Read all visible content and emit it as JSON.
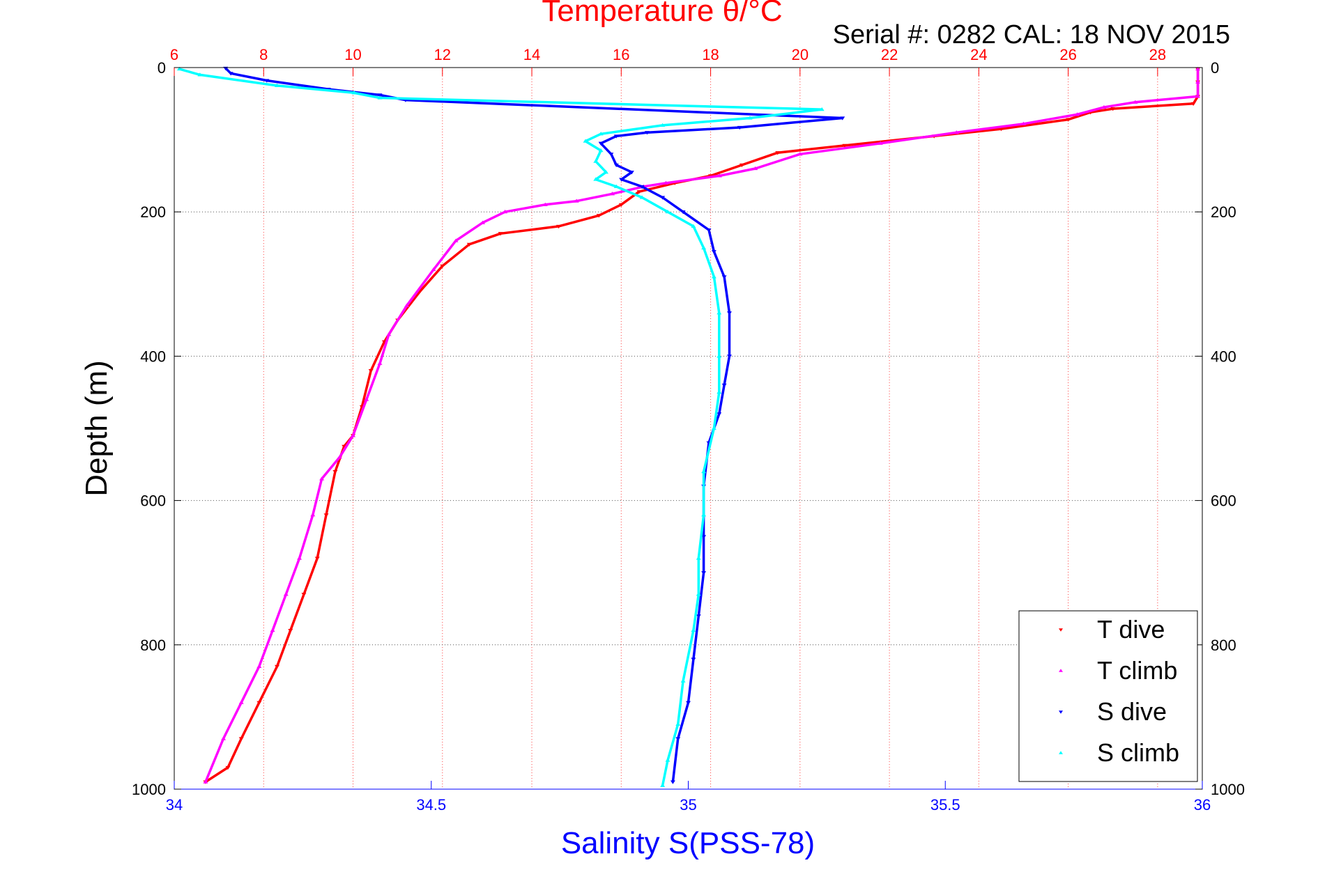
{
  "chart_data": {
    "type": "scatter",
    "title": "Temperature θ/°C",
    "subtitle": "Serial #: 0282  CAL: 18 NOV 2015",
    "xlabel": "Salinity S(PSS-78)",
    "ylabel": "Depth (m)",
    "temperature_axis": {
      "lim": [
        6,
        29
      ],
      "ticks": [
        "6",
        "8",
        "10",
        "12",
        "14",
        "16",
        "18",
        "20",
        "22",
        "24",
        "26",
        "28"
      ]
    },
    "salinity_axis": {
      "lim": [
        34,
        36
      ],
      "ticks": [
        "34",
        "34.5",
        "35",
        "35.5",
        "36"
      ]
    },
    "depth_axis": {
      "lim": [
        0,
        1000
      ],
      "reversed": true,
      "ticks": [
        "0",
        "200",
        "400",
        "600",
        "800",
        "1000"
      ]
    },
    "grid": true,
    "legend": {
      "placement": "bottom-right"
    },
    "series": [
      {
        "name": "T dive",
        "axis": "temperature",
        "color": "#ff0000",
        "marker": "triangle-down",
        "points": [
          [
            28.9,
            2
          ],
          [
            28.9,
            20
          ],
          [
            28.9,
            40
          ],
          [
            28.8,
            50
          ],
          [
            27.0,
            57
          ],
          [
            26.5,
            62
          ],
          [
            26.0,
            72
          ],
          [
            24.5,
            85
          ],
          [
            23.0,
            95
          ],
          [
            21.0,
            108
          ],
          [
            19.5,
            118
          ],
          [
            18.7,
            135
          ],
          [
            18.0,
            150
          ],
          [
            17.2,
            160
          ],
          [
            16.4,
            172
          ],
          [
            16.0,
            190
          ],
          [
            15.5,
            205
          ],
          [
            14.6,
            220
          ],
          [
            13.3,
            230
          ],
          [
            12.6,
            245
          ],
          [
            12.0,
            275
          ],
          [
            11.5,
            310
          ],
          [
            11.0,
            350
          ],
          [
            10.7,
            380
          ],
          [
            10.4,
            420
          ],
          [
            10.2,
            470
          ],
          [
            10.0,
            510
          ],
          [
            9.8,
            525
          ],
          [
            9.6,
            560
          ],
          [
            9.4,
            620
          ],
          [
            9.2,
            680
          ],
          [
            8.9,
            730
          ],
          [
            8.6,
            780
          ],
          [
            8.3,
            830
          ],
          [
            7.9,
            880
          ],
          [
            7.5,
            930
          ],
          [
            7.2,
            970
          ],
          [
            6.7,
            990
          ]
        ]
      },
      {
        "name": "T climb",
        "axis": "temperature",
        "color": "#ff00ff",
        "marker": "triangle-up",
        "points": [
          [
            28.9,
            2
          ],
          [
            28.9,
            20
          ],
          [
            28.9,
            40
          ],
          [
            27.5,
            48
          ],
          [
            26.8,
            55
          ],
          [
            26.2,
            65
          ],
          [
            25.0,
            78
          ],
          [
            23.5,
            90
          ],
          [
            21.8,
            105
          ],
          [
            20.0,
            120
          ],
          [
            19.0,
            140
          ],
          [
            18.2,
            150
          ],
          [
            17.0,
            160
          ],
          [
            16.5,
            165
          ],
          [
            15.8,
            175
          ],
          [
            15.0,
            185
          ],
          [
            14.3,
            190
          ],
          [
            13.4,
            200
          ],
          [
            12.9,
            215
          ],
          [
            12.3,
            240
          ],
          [
            11.8,
            280
          ],
          [
            11.2,
            330
          ],
          [
            10.8,
            370
          ],
          [
            10.6,
            410
          ],
          [
            10.3,
            460
          ],
          [
            10.0,
            510
          ],
          [
            9.7,
            540
          ],
          [
            9.3,
            570
          ],
          [
            9.1,
            620
          ],
          [
            8.8,
            680
          ],
          [
            8.5,
            730
          ],
          [
            8.2,
            780
          ],
          [
            7.9,
            830
          ],
          [
            7.5,
            880
          ],
          [
            7.1,
            930
          ],
          [
            6.7,
            990
          ]
        ]
      },
      {
        "name": "S dive",
        "axis": "salinity",
        "color": "#0000ff",
        "marker": "triangle-down",
        "points": [
          [
            34.1,
            1
          ],
          [
            34.11,
            8
          ],
          [
            34.18,
            18
          ],
          [
            34.3,
            30
          ],
          [
            34.4,
            38
          ],
          [
            34.45,
            45
          ],
          [
            35.3,
            70
          ],
          [
            35.1,
            83
          ],
          [
            34.92,
            90
          ],
          [
            34.86,
            95
          ],
          [
            34.83,
            105
          ],
          [
            34.85,
            120
          ],
          [
            34.86,
            135
          ],
          [
            34.89,
            145
          ],
          [
            34.87,
            155
          ],
          [
            34.91,
            165
          ],
          [
            34.95,
            180
          ],
          [
            34.99,
            200
          ],
          [
            35.04,
            225
          ],
          [
            35.05,
            255
          ],
          [
            35.07,
            290
          ],
          [
            35.08,
            340
          ],
          [
            35.08,
            400
          ],
          [
            35.07,
            440
          ],
          [
            35.06,
            480
          ],
          [
            35.04,
            520
          ],
          [
            35.03,
            580
          ],
          [
            35.03,
            650
          ],
          [
            35.03,
            700
          ],
          [
            35.02,
            760
          ],
          [
            35.01,
            820
          ],
          [
            35.0,
            880
          ],
          [
            34.98,
            930
          ],
          [
            34.97,
            990
          ]
        ]
      },
      {
        "name": "S climb",
        "axis": "salinity",
        "color": "#00ffff",
        "marker": "triangle-up",
        "points": [
          [
            34.01,
            2
          ],
          [
            34.05,
            10
          ],
          [
            34.2,
            25
          ],
          [
            34.35,
            35
          ],
          [
            34.4,
            42
          ],
          [
            35.26,
            58
          ],
          [
            35.12,
            70
          ],
          [
            34.95,
            80
          ],
          [
            34.83,
            92
          ],
          [
            34.8,
            102
          ],
          [
            34.83,
            115
          ],
          [
            34.82,
            130
          ],
          [
            34.84,
            145
          ],
          [
            34.82,
            155
          ],
          [
            34.86,
            165
          ],
          [
            34.91,
            180
          ],
          [
            34.96,
            200
          ],
          [
            35.01,
            220
          ],
          [
            35.03,
            250
          ],
          [
            35.05,
            290
          ],
          [
            35.06,
            340
          ],
          [
            35.06,
            400
          ],
          [
            35.06,
            450
          ],
          [
            35.05,
            500
          ],
          [
            35.03,
            560
          ],
          [
            35.03,
            620
          ],
          [
            35.02,
            680
          ],
          [
            35.02,
            730
          ],
          [
            35.01,
            780
          ],
          [
            34.99,
            850
          ],
          [
            34.98,
            910
          ],
          [
            34.96,
            960
          ],
          [
            34.95,
            995
          ]
        ]
      }
    ]
  }
}
